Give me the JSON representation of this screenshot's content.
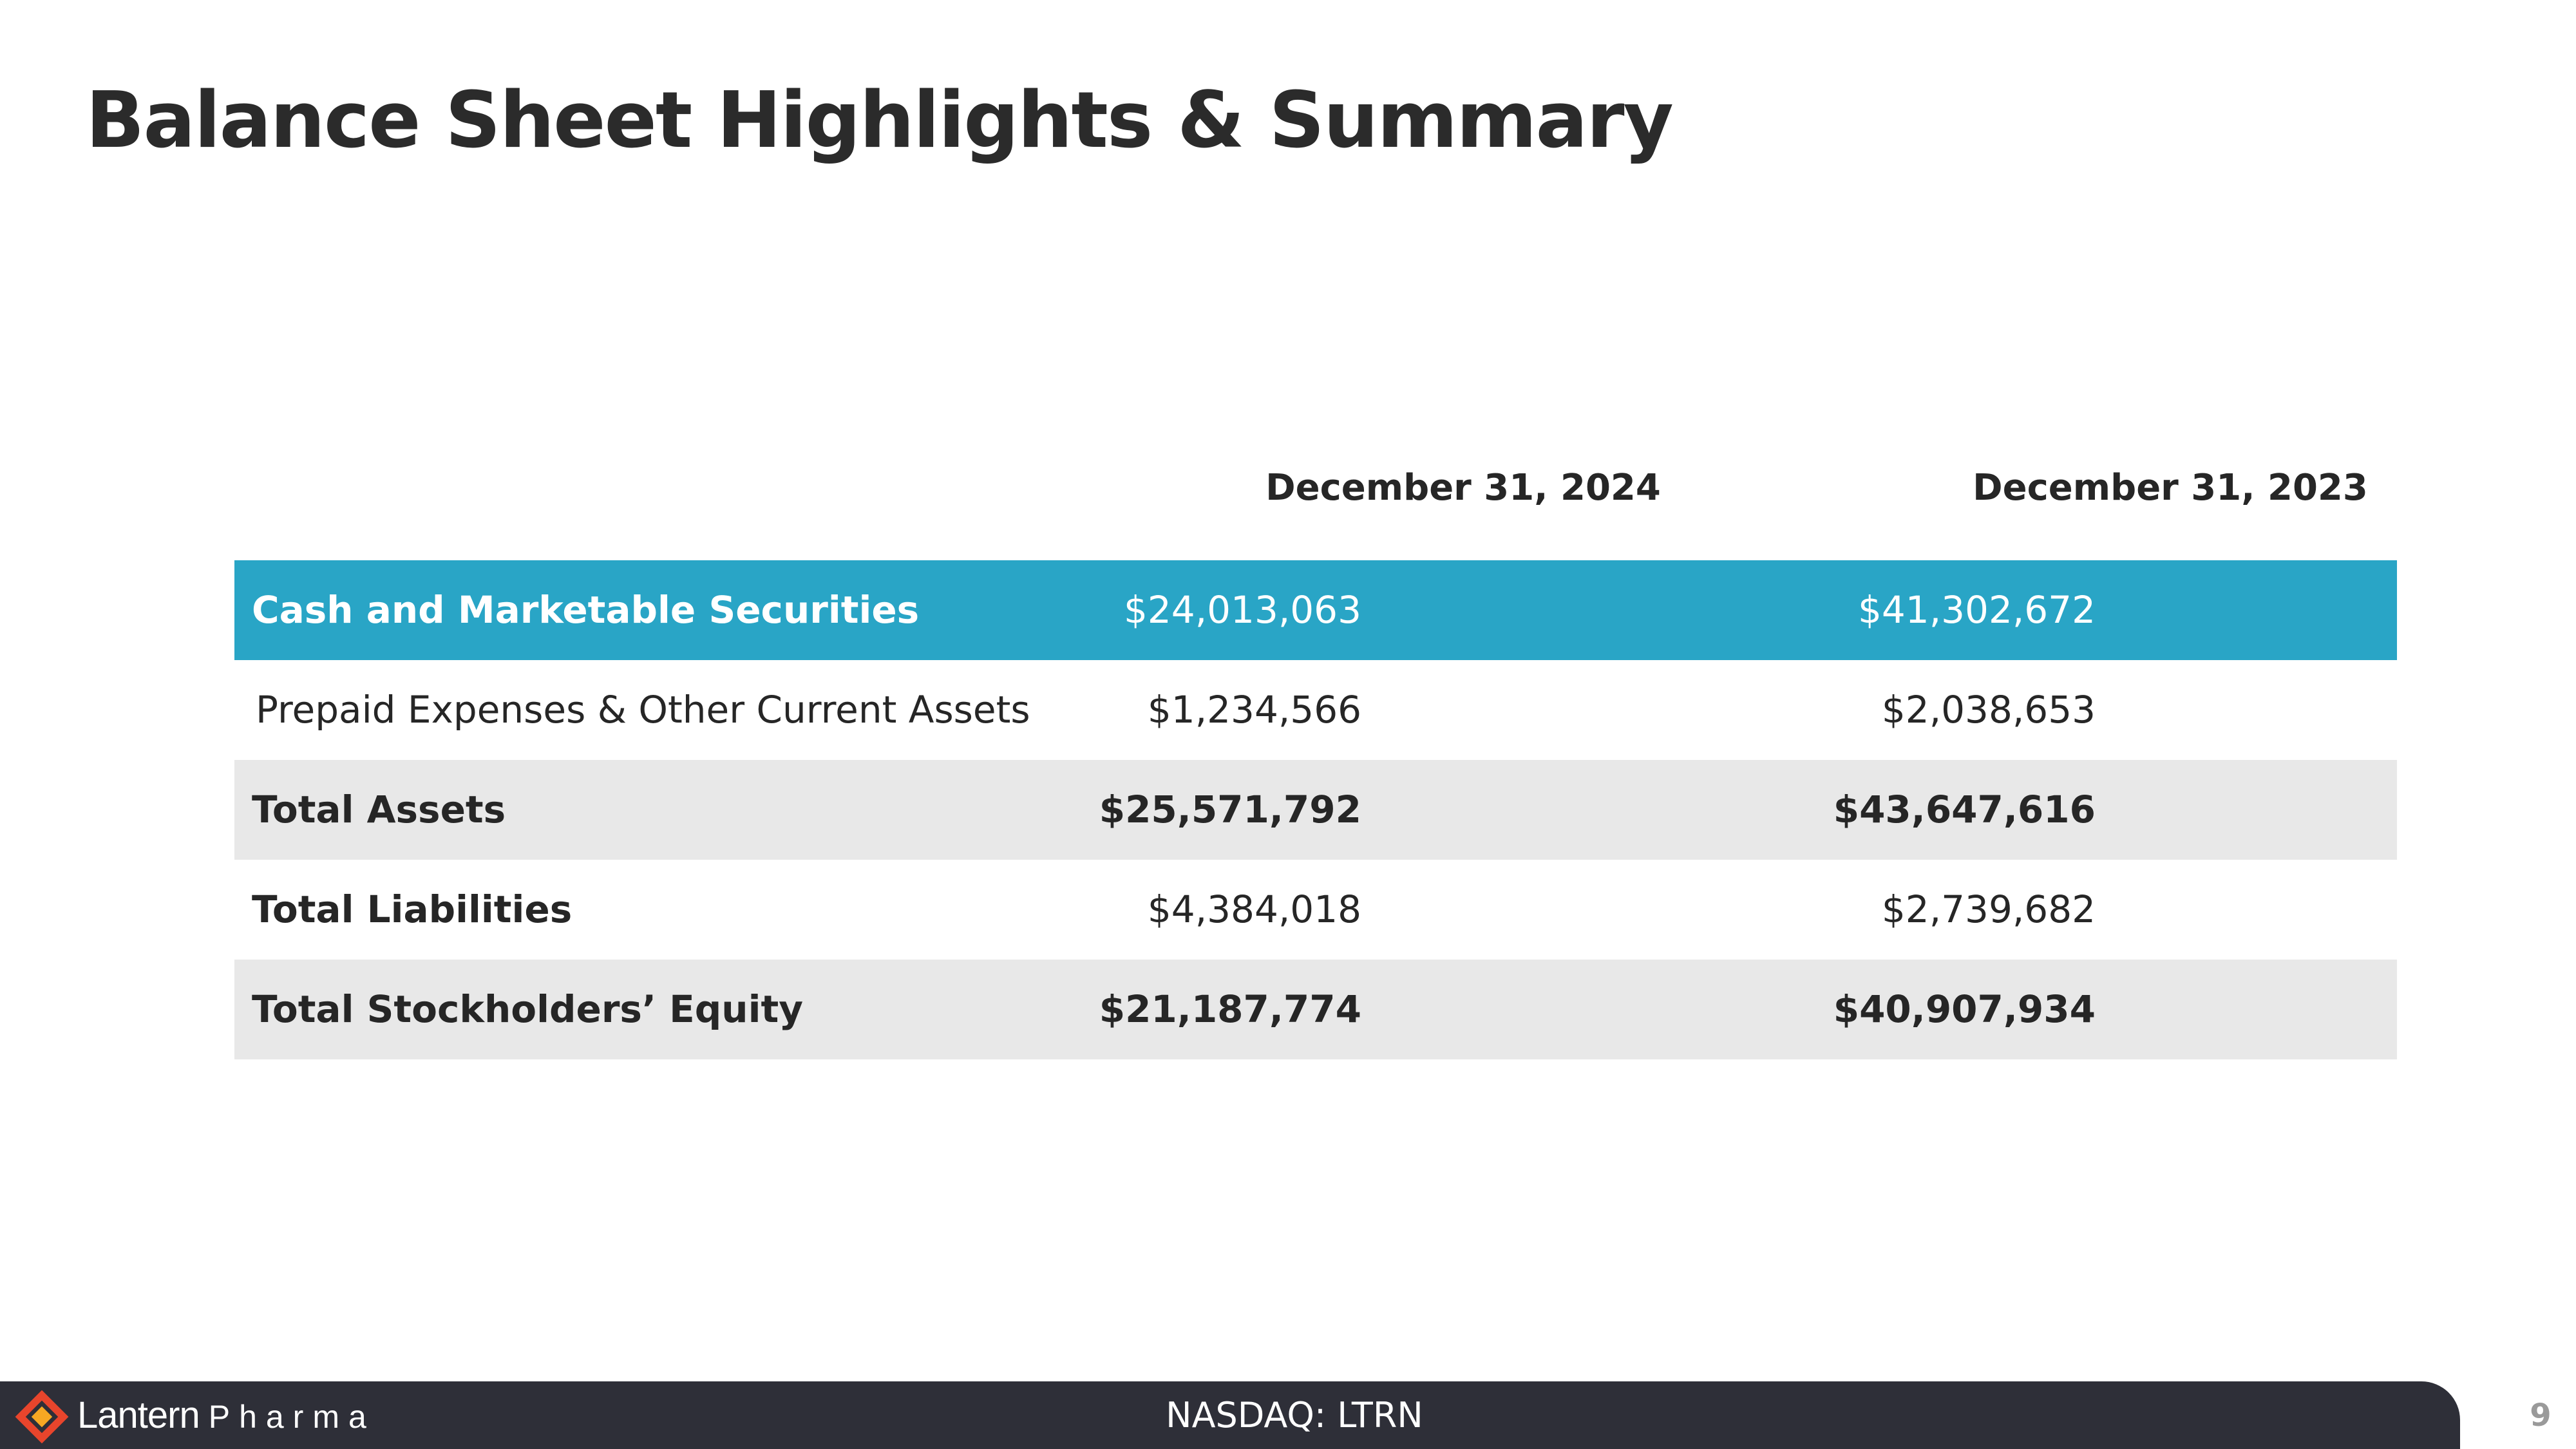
{
  "title": "Balance Sheet Highlights & Summary",
  "table": {
    "columns": [
      "December 31, 2024",
      "December 31, 2023"
    ],
    "rows": [
      {
        "label": "Cash and Marketable Securities",
        "v2024": "$24,013,063",
        "v2023": "$41,302,672"
      },
      {
        "label": "Prepaid Expenses &  Other Current Assets",
        "v2024": "$1,234,566",
        "v2023": "$2,038,653"
      },
      {
        "label": "Total Assets",
        "v2024": "$25,571,792",
        "v2023": "$43,647,616"
      },
      {
        "label": "Total Liabilities",
        "v2024": "$4,384,018",
        "v2023": "$2,739,682"
      },
      {
        "label": "Total Stockholders’ Equity",
        "v2024": "$21,187,774",
        "v2023": "$40,907,934"
      }
    ]
  },
  "footer": {
    "logo_word1": "Lantern",
    "logo_word2": "Pharma",
    "ticker": "NASDAQ: LTRN",
    "page_number": "9"
  },
  "colors": {
    "highlight_row": "#29a5c6",
    "gray_row": "#e8e8e8",
    "footer_bar": "#2e2f38",
    "logo_outer": "#e8452c",
    "logo_inner": "#f7a823"
  }
}
